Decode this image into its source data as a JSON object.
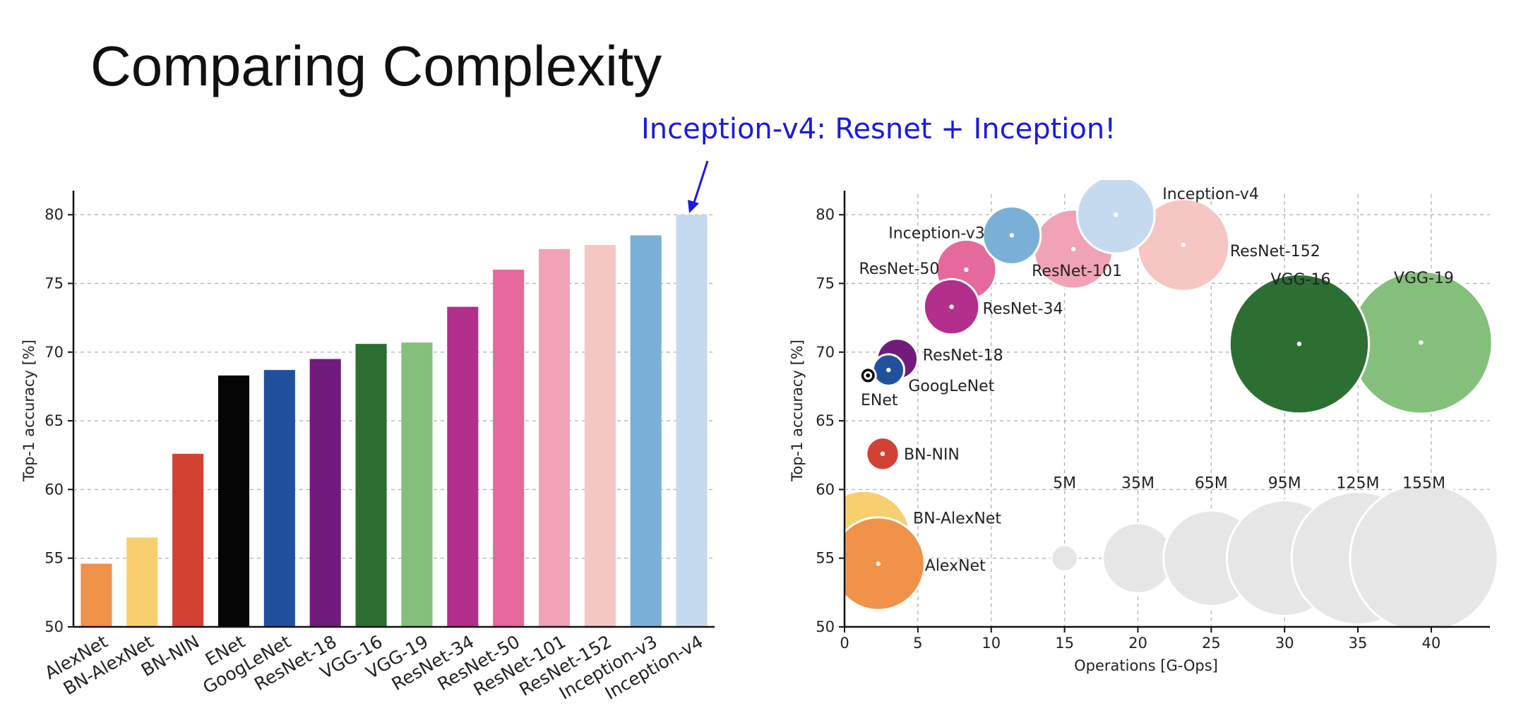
{
  "slide": {
    "title": "Comparing Complexity",
    "annotation": "Inception-v4: Resnet + Inception!",
    "colors": {
      "title": "#111111",
      "annotation": "#1a1adf"
    }
  },
  "chart_data": [
    {
      "type": "bar",
      "ylabel": "Top-1 accuracy [%]",
      "xlabel": "",
      "ylim": [
        50,
        81.5
      ],
      "yticks": [
        50,
        55,
        60,
        65,
        70,
        75,
        80
      ],
      "grid": true,
      "categories": [
        "AlexNet",
        "BN-AlexNet",
        "BN-NIN",
        "ENet",
        "GoogLeNet",
        "ResNet-18",
        "VGG-16",
        "VGG-19",
        "ResNet-34",
        "ResNet-50",
        "ResNet-101",
        "ResNet-152",
        "Inception-v3",
        "Inception-v4"
      ],
      "values": [
        54.6,
        56.5,
        62.6,
        68.3,
        68.7,
        69.5,
        70.6,
        70.7,
        73.3,
        76.0,
        77.5,
        77.8,
        78.5,
        80.0
      ],
      "colors": [
        "#f0924a",
        "#f7cf6f",
        "#d24234",
        "#050505",
        "#21519c",
        "#711b7c",
        "#2c6f33",
        "#84c07c",
        "#b22f8c",
        "#e6699c",
        "#f0a3b6",
        "#f6c6c3",
        "#7ab0d7",
        "#c6daef"
      ]
    },
    {
      "type": "scatter",
      "xlabel": "Operations [G-Ops]",
      "ylabel": "Top-1 accuracy [%]",
      "xlim": [
        0,
        44
      ],
      "ylim": [
        50,
        81.5
      ],
      "xticks": [
        0,
        5,
        10,
        15,
        20,
        25,
        30,
        35,
        40
      ],
      "yticks": [
        50,
        55,
        60,
        65,
        70,
        75,
        80
      ],
      "grid": true,
      "points": [
        {
          "name": "AlexNet",
          "x": 2.3,
          "y": 54.6,
          "params": 61,
          "color": "#f0924a"
        },
        {
          "name": "BN-AlexNet",
          "x": 1.3,
          "y": 56.5,
          "params": 62,
          "color": "#f7cf6f"
        },
        {
          "name": "BN-NIN",
          "x": 2.6,
          "y": 62.6,
          "params": 7.6,
          "color": "#d24234"
        },
        {
          "name": "ENet",
          "x": 1.6,
          "y": 68.3,
          "params": 0.4,
          "color": "#050505"
        },
        {
          "name": "GoogLeNet",
          "x": 3.0,
          "y": 68.7,
          "params": 7,
          "color": "#21519c"
        },
        {
          "name": "ResNet-18",
          "x": 3.6,
          "y": 69.5,
          "params": 11.7,
          "color": "#711b7c"
        },
        {
          "name": "ResNet-34",
          "x": 7.3,
          "y": 73.3,
          "params": 21.8,
          "color": "#b22f8c"
        },
        {
          "name": "ResNet-50",
          "x": 8.3,
          "y": 76.0,
          "params": 25.6,
          "color": "#e6699c"
        },
        {
          "name": "Inception-v3",
          "x": 11.4,
          "y": 78.5,
          "params": 23.8,
          "color": "#7ab0d7"
        },
        {
          "name": "ResNet-101",
          "x": 15.6,
          "y": 77.5,
          "params": 44.5,
          "color": "#f0a3b6"
        },
        {
          "name": "Inception-v4",
          "x": 18.5,
          "y": 80.0,
          "params": 42.7,
          "color": "#c6daef"
        },
        {
          "name": "ResNet-152",
          "x": 23.1,
          "y": 77.8,
          "params": 60.2,
          "color": "#f6c6c3"
        },
        {
          "name": "VGG-16",
          "x": 31.0,
          "y": 70.6,
          "params": 138,
          "color": "#2c6f33"
        },
        {
          "name": "VGG-19",
          "x": 39.3,
          "y": 70.7,
          "params": 144,
          "color": "#84c07c"
        }
      ],
      "size_legend": [
        {
          "label": "5M",
          "x": 15,
          "params": 5
        },
        {
          "label": "35M",
          "x": 20,
          "params": 35
        },
        {
          "label": "65M",
          "x": 25,
          "params": 65
        },
        {
          "label": "95M",
          "x": 30,
          "params": 95
        },
        {
          "label": "125M",
          "x": 35,
          "params": 125
        },
        {
          "label": "155M",
          "x": 39.5,
          "params": 155
        }
      ],
      "size_legend_y": 55,
      "size_legend_color": "#e6e6e6"
    }
  ]
}
